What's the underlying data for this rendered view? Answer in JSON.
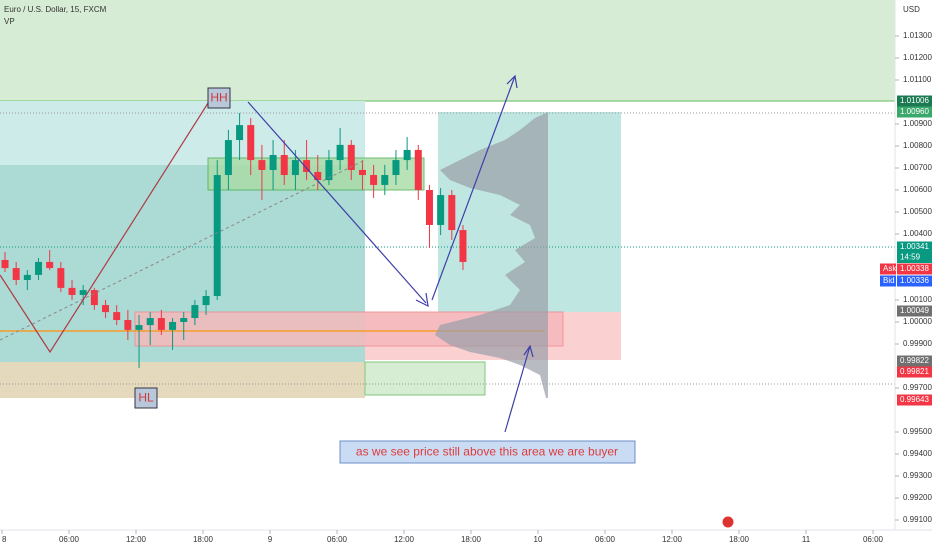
{
  "chart_data": {
    "type": "candlestick",
    "title": "Euro / U.S. Dollar, 15, FXCM",
    "indicator": "VP",
    "currency": "USD",
    "ylim": [
      0.990545,
      1.014636
    ],
    "yticks": [
      {
        "value": 1.013,
        "label": "1.01300"
      },
      {
        "value": 1.012,
        "label": "1.01200"
      },
      {
        "value": 1.011,
        "label": "1.01100"
      },
      {
        "value": 1.009,
        "label": "1.00900"
      },
      {
        "value": 1.008,
        "label": "1.00800"
      },
      {
        "value": 1.007,
        "label": "1.00700"
      },
      {
        "value": 1.006,
        "label": "1.00600"
      },
      {
        "value": 1.005,
        "label": "1.00500"
      },
      {
        "value": 1.004,
        "label": "1.00400"
      },
      {
        "value": 1.001,
        "label": "1.00100"
      },
      {
        "value": 1.0,
        "label": "1.00000"
      },
      {
        "value": 0.999,
        "label": "0.99900"
      },
      {
        "value": 0.997,
        "label": "0.99700"
      },
      {
        "value": 0.995,
        "label": "0.99500"
      },
      {
        "value": 0.994,
        "label": "0.99400"
      },
      {
        "value": 0.993,
        "label": "0.99300"
      },
      {
        "value": 0.992,
        "label": "0.99200"
      },
      {
        "value": 0.991,
        "label": "0.99100"
      }
    ],
    "xticks": [
      "8",
      "06:00",
      "12:00",
      "18:00",
      "9",
      "06:00",
      "12:00",
      "18:00",
      "10",
      "06:00",
      "12:00",
      "18:00",
      "11",
      "06:00"
    ],
    "open": [
      1.00282,
      1.00245,
      1.00191,
      1.00214,
      1.00273,
      1.00245,
      1.00155,
      1.00123,
      1.00145,
      1.00077,
      1.00045,
      1.00009,
      0.99964,
      0.99986,
      1.00018,
      0.99964,
      1.0,
      1.00018,
      1.00077,
      1.00118,
      1.00668,
      1.00827,
      1.00895,
      1.00736,
      1.00691,
      1.00759,
      1.00668,
      1.00736,
      1.00682,
      1.00645,
      1.00736,
      1.00805,
      1.00691,
      1.00668,
      1.00623,
      1.00668,
      1.00736,
      1.00782,
      1.006,
      1.00441,
      1.00577,
      1.00418
    ],
    "high": [
      1.00318,
      1.00273,
      1.00236,
      1.00291,
      1.00327,
      1.00273,
      1.00191,
      1.00168,
      1.00155,
      1.001,
      1.00077,
      1.00055,
      1.00032,
      1.00045,
      1.00055,
      1.00018,
      1.00045,
      1.001,
      1.00145,
      1.00736,
      1.00873,
      1.0095,
      1.00927,
      1.00805,
      1.00827,
      1.00827,
      1.00782,
      1.00827,
      1.00759,
      1.00782,
      1.00882,
      1.00827,
      1.00736,
      1.00714,
      1.00714,
      1.00782,
      1.00841,
      1.00805,
      1.00623,
      1.00609,
      1.006,
      1.00441
    ],
    "low": [
      1.00227,
      1.00168,
      1.00145,
      1.00191,
      1.00236,
      1.00136,
      1.001,
      1.00077,
      1.00055,
      1.00018,
      0.99986,
      0.99918,
      0.99791,
      0.99895,
      0.99941,
      0.99873,
      0.99918,
      0.99986,
      1.00032,
      1.001,
      1.006,
      1.00736,
      1.00668,
      1.00555,
      1.006,
      1.00623,
      1.006,
      1.00645,
      1.006,
      1.00623,
      1.00691,
      1.00645,
      1.006,
      1.00564,
      1.00577,
      1.00623,
      1.00691,
      1.00555,
      1.00336,
      1.00395,
      1.00373,
      1.00236
    ],
    "close": [
      1.00245,
      1.00191,
      1.00214,
      1.00273,
      1.00245,
      1.00155,
      1.00123,
      1.00145,
      1.00077,
      1.00045,
      1.00009,
      0.99964,
      0.99986,
      1.00018,
      0.99964,
      1.0,
      1.00018,
      1.00077,
      1.00118,
      1.00668,
      1.00827,
      1.00895,
      1.00736,
      1.00691,
      1.00759,
      1.00668,
      1.00736,
      1.00682,
      1.00645,
      1.00736,
      1.00805,
      1.00691,
      1.00668,
      1.00623,
      1.00668,
      1.00736,
      1.00782,
      1.006,
      1.00441,
      1.00577,
      1.00418,
      1.00273
    ],
    "up_color": "#089981",
    "down_color": "#f23645",
    "price_labels": [
      {
        "value": 1.01006,
        "label": "1.01006",
        "color": "#1b7a52"
      },
      {
        "value": 1.0096,
        "label": "1.00960",
        "color": "#3aa86a"
      },
      {
        "value": 1.00341,
        "label": "1.00341",
        "color": "#089981"
      },
      {
        "value": 1.00338,
        "label": "1.00338",
        "color": "#f23645"
      },
      {
        "value": 1.00336,
        "label": "1.00336",
        "color": "#2962ff"
      },
      {
        "value": 1.00049,
        "label": "1.00049",
        "color": "#707070"
      },
      {
        "value": 0.99822,
        "label": "0.99822",
        "color": "#707070"
      },
      {
        "value": 0.99821,
        "label": "0.99821",
        "color": "#f23645"
      },
      {
        "value": 0.99643,
        "label": "0.99643",
        "color": "#f23645"
      }
    ],
    "countdown": "14:59",
    "ask": "Ask",
    "bid": "Bid",
    "annotations": {
      "hh": "HH",
      "hl": "HL",
      "note": "as we see price still above this area we are buyer"
    }
  }
}
